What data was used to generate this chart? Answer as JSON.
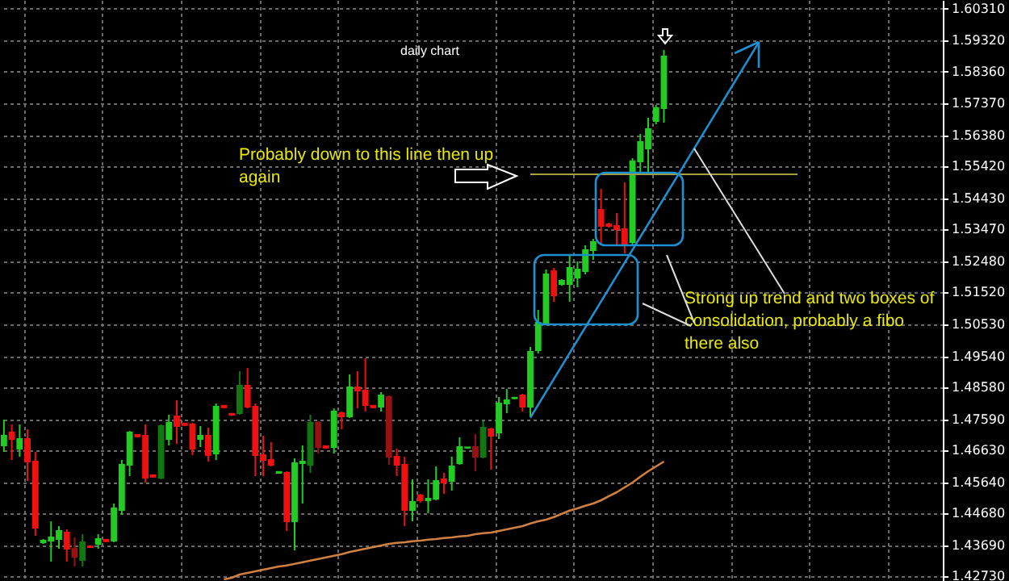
{
  "chart_data": {
    "type": "candlestick",
    "title": "daily chart",
    "categories": [
      null,
      null,
      null,
      null,
      null,
      null,
      null,
      null,
      null,
      null,
      null,
      null,
      null,
      null,
      null,
      null,
      null,
      null,
      null,
      null,
      null,
      null,
      null,
      null,
      null,
      null,
      null,
      null,
      null,
      null,
      null,
      null,
      null,
      null,
      null,
      null,
      null,
      null,
      null,
      null,
      null,
      null,
      null,
      null,
      null,
      null,
      null,
      null,
      null,
      null,
      null,
      null,
      null,
      null,
      null,
      null,
      null,
      null,
      null,
      null,
      null,
      null,
      null,
      null,
      null,
      null,
      null,
      null,
      null,
      null,
      null,
      null,
      null,
      null,
      null,
      null,
      null,
      null,
      null,
      null,
      null,
      null,
      null,
      null,
      null,
      null,
      null,
      null,
      null,
      null,
      null,
      null,
      null,
      null,
      null,
      null,
      null,
      null,
      null,
      null,
      null,
      null,
      null,
      null,
      null,
      null,
      null,
      null,
      null,
      null,
      null,
      null,
      null,
      null,
      null,
      null,
      null,
      null,
      null,
      null
    ],
    "ohlc": [
      [
        1.4678,
        1.4758,
        1.4658,
        1.4708
      ],
      [
        1.4718,
        1.4743,
        1.4633,
        1.4698
      ],
      [
        1.4668,
        1.4743,
        1.4643,
        1.4698
      ],
      [
        1.4698,
        1.4728,
        1.4568,
        1.4628
      ],
      [
        1.4628,
        1.4658,
        1.4398,
        1.4423
      ],
      [
        1.4378,
        1.4388,
        1.4373,
        1.4383
      ],
      [
        1.4383,
        1.4443,
        1.4318,
        1.4393
      ],
      [
        1.4388,
        1.4428,
        1.4358,
        1.4413
      ],
      [
        1.4408,
        1.4418,
        1.4318,
        1.4358
      ],
      [
        1.4358,
        1.4393,
        1.4303,
        1.4333
      ],
      [
        1.4323,
        1.4403,
        1.4303,
        1.4378
      ],
      [
        1.4365,
        1.4368,
        1.4361,
        1.4363
      ],
      [
        1.4373,
        1.4403,
        1.4358,
        1.4388
      ],
      [
        1.4386,
        1.4388,
        1.4378,
        1.4381
      ],
      [
        1.4383,
        1.4498,
        1.4378,
        1.4483
      ],
      [
        1.4478,
        1.4633,
        1.4463,
        1.4618
      ],
      [
        1.4618,
        1.4723,
        1.4583,
        1.4718
      ],
      [
        1.4711,
        1.4713,
        1.4703,
        1.4706
      ],
      [
        1.4708,
        1.4743,
        1.4563,
        1.4578
      ],
      [
        1.4586,
        1.4588,
        1.4578,
        1.4581
      ],
      [
        1.4578,
        1.4743,
        1.4573,
        1.4738
      ],
      [
        1.4698,
        1.4773,
        1.4678,
        1.4748
      ],
      [
        1.4768,
        1.4818,
        1.4683,
        1.4738
      ],
      [
        1.4746,
        1.4748,
        1.4738,
        1.4741
      ],
      [
        1.4743,
        1.4748,
        1.4648,
        1.4668
      ],
      [
        1.4698,
        1.4738,
        1.4673,
        1.4708
      ],
      [
        1.4708,
        1.4733,
        1.4628,
        1.4648
      ],
      [
        1.4653,
        1.4808,
        1.4633,
        1.4798
      ],
      [
        1.4801,
        1.4803,
        1.4793,
        1.4796
      ],
      [
        1.4776,
        1.4778,
        1.4771,
        1.4773
      ],
      [
        1.4778,
        1.4908,
        1.4773,
        1.4863
      ],
      [
        1.4863,
        1.4918,
        1.4793,
        1.4798
      ],
      [
        1.4798,
        1.4808,
        1.4583,
        1.4648
      ],
      [
        1.4648,
        1.4708,
        1.4583,
        1.4633
      ],
      [
        1.4633,
        1.4688,
        1.4613,
        1.4618
      ],
      [
        1.4593,
        1.4598,
        1.4591,
        1.4596
      ],
      [
        1.4593,
        1.4598,
        1.4413,
        1.4443
      ],
      [
        1.4443,
        1.4638,
        1.4353,
        1.4623
      ],
      [
        1.4623,
        1.4678,
        1.4498,
        1.4628
      ],
      [
        1.4618,
        1.4773,
        1.4593,
        1.4748
      ],
      [
        1.4748,
        1.4753,
        1.4653,
        1.4673
      ],
      [
        1.4676,
        1.4678,
        1.4668,
        1.4671
      ],
      [
        1.4673,
        1.4793,
        1.4653,
        1.4783
      ],
      [
        1.4778,
        1.4783,
        1.4728,
        1.4768
      ],
      [
        1.4768,
        1.4898,
        1.4763,
        1.4858
      ],
      [
        1.4858,
        1.4908,
        1.4793,
        1.4848
      ],
      [
        1.4848,
        1.4948,
        1.4783,
        1.4803
      ],
      [
        1.4801,
        1.4803,
        1.4793,
        1.4796
      ],
      [
        1.4798,
        1.4843,
        1.4783,
        1.4833
      ],
      [
        1.4828,
        1.4833,
        1.4618,
        1.4643
      ],
      [
        1.4643,
        1.4668,
        1.4583,
        1.4618
      ],
      [
        1.4618,
        1.4643,
        1.4428,
        1.4478
      ],
      [
        1.4478,
        1.4573,
        1.4443,
        1.4503
      ],
      [
        1.4523,
        1.4528,
        1.4501,
        1.4508
      ],
      [
        1.4508,
        1.4573,
        1.4468,
        1.4513
      ],
      [
        1.4513,
        1.4613,
        1.4508,
        1.4568
      ],
      [
        1.4573,
        1.4593,
        1.4528,
        1.4563
      ],
      [
        1.4568,
        1.4643,
        1.4538,
        1.4613
      ],
      [
        1.4623,
        1.4703,
        1.4618,
        1.4673
      ],
      [
        1.4671,
        1.4673,
        1.4668,
        1.4672
      ],
      [
        1.4673,
        1.4713,
        1.4598,
        1.4643
      ],
      [
        1.4643,
        1.4753,
        1.4638,
        1.4733
      ],
      [
        1.4728,
        1.4733,
        1.4603,
        1.4708
      ],
      [
        1.4718,
        1.4828,
        1.4698,
        1.4808
      ],
      [
        1.4808,
        1.4853,
        1.4778,
        1.4818
      ],
      [
        1.4824,
        1.4828,
        1.4821,
        1.4826
      ],
      [
        1.4833,
        1.4838,
        1.4783,
        1.4798
      ],
      [
        1.4798,
        1.4983,
        1.4768,
        1.4968
      ],
      [
        1.4973,
        1.5098,
        1.4963,
        1.5058
      ],
      [
        1.5058,
        1.5223,
        1.5053,
        1.5208
      ],
      [
        1.5218,
        1.5228,
        1.5123,
        1.5143
      ],
      [
        1.5178,
        1.5193,
        1.5173,
        1.5188
      ],
      [
        1.5178,
        1.5268,
        1.5123,
        1.5228
      ],
      [
        1.5198,
        1.5248,
        1.5168,
        1.5223
      ],
      [
        1.5218,
        1.5298,
        1.5208,
        1.5283
      ],
      [
        1.5283,
        1.5318,
        1.5253,
        1.5308
      ],
      [
        1.5408,
        1.5473,
        1.5298,
        1.5358
      ],
      [
        1.5363,
        1.5368,
        1.5353,
        1.5358
      ],
      [
        1.5358,
        1.5398,
        1.5298,
        1.5348
      ],
      [
        1.5348,
        1.5493,
        1.5273,
        1.5298
      ],
      [
        1.5308,
        1.5568,
        1.5298,
        1.5558
      ],
      [
        1.5558,
        1.5643,
        1.5518,
        1.5618
      ],
      [
        1.5598,
        1.5693,
        1.5523,
        1.5658
      ],
      [
        1.5683,
        1.5733,
        1.5673,
        1.5723
      ],
      [
        1.5723,
        1.5903,
        1.5678,
        1.5883
      ],
      null,
      null,
      null,
      null,
      null,
      null,
      null,
      null,
      null,
      null,
      null,
      null,
      null,
      null,
      null,
      null,
      null,
      null,
      null,
      null,
      null,
      null,
      null,
      null,
      null,
      null,
      null,
      null,
      null,
      null,
      null,
      null,
      null,
      null,
      null
    ],
    "colors": [
      "#22cc22",
      "#ee1111",
      "#22cc22",
      "#ee1111",
      "#ee1111",
      "#22cc22",
      "#22cc22",
      "#22cc22",
      "#ee1111",
      "#991111",
      "#117711",
      "#ee1111",
      "#22cc22",
      "#ee1111",
      "#22cc22",
      "#22cc22",
      "#22cc22",
      "#ee1111",
      "#ee1111",
      "#ee1111",
      "#117711",
      "#22cc22",
      "#ee1111",
      "#ee1111",
      "#ee1111",
      "#22cc22",
      "#ee1111",
      "#22cc22",
      "#ee1111",
      "#ee1111",
      "#117711",
      "#ee1111",
      "#ee1111",
      "#ee1111",
      "#ee1111",
      "#22cc22",
      "#ee1111",
      "#22cc22",
      "#22cc22",
      "#117711",
      "#991111",
      "#ee1111",
      "#22cc22",
      "#ee1111",
      "#22cc22",
      "#ee1111",
      "#ee1111",
      "#ee1111",
      "#22cc22",
      "#991111",
      "#ee1111",
      "#ee1111",
      "#22cc22",
      "#ee1111",
      "#22cc22",
      "#22cc22",
      "#ee1111",
      "#22cc22",
      "#22cc22",
      "#22cc22",
      "#991111",
      "#117711",
      "#ee1111",
      "#22cc22",
      "#22cc22",
      "#22cc22",
      "#ee1111",
      "#22cc22",
      "#22cc22",
      "#22cc22",
      "#ee1111",
      "#22cc22",
      "#22cc22",
      "#22cc22",
      "#22cc22",
      "#22cc22",
      "#ee1111",
      "#ee1111",
      "#ee1111",
      "#ee1111",
      "#22cc22",
      "#22cc22",
      "#22cc22",
      "#22cc22",
      "#22cc22",
      null,
      null,
      null,
      null,
      null,
      null,
      null,
      null,
      null,
      null,
      null,
      null,
      null,
      null,
      null,
      null,
      null,
      null,
      null,
      null,
      null,
      null,
      null,
      null,
      null,
      null,
      null,
      null,
      null,
      null,
      null,
      null,
      null,
      null,
      null
    ],
    "series": [
      {
        "type": "line",
        "color": "#d08040",
        "values": [
          null,
          null,
          null,
          null,
          null,
          null,
          null,
          null,
          null,
          null,
          null,
          null,
          null,
          null,
          null,
          null,
          null,
          null,
          null,
          null,
          null,
          null,
          null,
          null,
          null,
          null,
          null,
          null,
          1.4263,
          1.4268,
          1.4278,
          1.4283,
          1.4288,
          1.4293,
          1.4298,
          1.4303,
          1.4306,
          1.4311,
          1.4316,
          1.4321,
          1.4326,
          1.4331,
          1.4336,
          1.4341,
          1.4348,
          1.4353,
          1.4358,
          1.4363,
          1.4368,
          1.4373,
          1.4376,
          1.4378,
          1.4381,
          1.4383,
          1.4386,
          1.4388,
          1.4391,
          1.4393,
          1.4396,
          1.4398,
          1.4403,
          1.4406,
          1.4408,
          1.4413,
          1.4418,
          1.4423,
          1.4428,
          1.4436,
          1.4443,
          1.4448,
          1.4456,
          1.4466,
          1.4476,
          1.4483,
          1.4491,
          1.4498,
          1.4508,
          1.4521,
          1.4533,
          1.4548,
          1.4563,
          1.4581,
          1.4598,
          1.4613,
          1.4628,
          null,
          null,
          null,
          null,
          null,
          null,
          null,
          null,
          null,
          null,
          null,
          null,
          null,
          null,
          null,
          null,
          null,
          null,
          null,
          null,
          null,
          null,
          null,
          null,
          null,
          null,
          null,
          null,
          null,
          null,
          null,
          null,
          null,
          null,
          null
        ]
      },
      {
        "type": "line",
        "color": "#1e90d0",
        "values": [
          null,
          null,
          null,
          null,
          null,
          null,
          null,
          null,
          null,
          null,
          null,
          null,
          null,
          null,
          null,
          null,
          null,
          null,
          null,
          null,
          null,
          null,
          null,
          null,
          null,
          null,
          null,
          null,
          null,
          null,
          null,
          null,
          null,
          null,
          null,
          null,
          null,
          null,
          null,
          null,
          null,
          null,
          null,
          null,
          null,
          null,
          null,
          null,
          null,
          null,
          null,
          null,
          null,
          null,
          null,
          null,
          null,
          null,
          null,
          null,
          null,
          null,
          null,
          null,
          null,
          null,
          null,
          1.4764,
          1.4804,
          1.4844,
          1.4884,
          1.4924,
          1.4964,
          1.5004,
          1.5044,
          1.5084,
          1.5124,
          1.5164,
          1.5204,
          1.5244,
          1.5284,
          1.5324,
          1.5364,
          1.5404,
          1.5444,
          1.5484,
          1.5524,
          1.5564,
          1.5604,
          1.5644,
          1.5684,
          1.5724,
          1.5764,
          1.5804,
          1.5844,
          1.5884,
          1.5924,
          null,
          null,
          null,
          null,
          null,
          null,
          null,
          null,
          null,
          null,
          null,
          null,
          null,
          null,
          null,
          null,
          null,
          null,
          null,
          null,
          null,
          null,
          null
        ]
      }
    ],
    "ylim": [
      1.4258,
      1.6058
    ],
    "yticks": [
      {
        "value": 1.6031,
        "label": "1.60310"
      },
      {
        "value": 1.5932,
        "label": "1.59320"
      },
      {
        "value": 1.5836,
        "label": "1.58360"
      },
      {
        "value": 1.5737,
        "label": "1.57370"
      },
      {
        "value": 1.5638,
        "label": "1.56380"
      },
      {
        "value": 1.5542,
        "label": "1.55420"
      },
      {
        "value": 1.5443,
        "label": "1.54430"
      },
      {
        "value": 1.5347,
        "label": "1.53470"
      },
      {
        "value": 1.5248,
        "label": "1.52480"
      },
      {
        "value": 1.5152,
        "label": "1.51520"
      },
      {
        "value": 1.5053,
        "label": "1.50530"
      },
      {
        "value": 1.4954,
        "label": "1.49540"
      },
      {
        "value": 1.4858,
        "label": "1.48580"
      },
      {
        "value": 1.4759,
        "label": "1.47590"
      },
      {
        "value": 1.4663,
        "label": "1.46630"
      },
      {
        "value": 1.4564,
        "label": "1.45640"
      },
      {
        "value": 1.4468,
        "label": "1.44680"
      },
      {
        "value": 1.4369,
        "label": "1.43690"
      },
      {
        "value": 1.4273,
        "label": "1.42730"
      }
    ],
    "grid": true,
    "tick_labels": "y",
    "ref_lines": [
      {
        "axis": "y",
        "value": 1.5518,
        "color": "#a8a040"
      }
    ],
    "annotations": [
      "Probably down to this line then up again",
      "Strong up trend and two boxes of consolidation, probably a fibo there also"
    ]
  }
}
